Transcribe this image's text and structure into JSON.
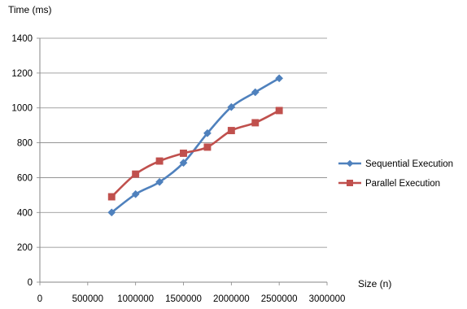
{
  "chart_data": {
    "type": "line",
    "xlabel": "Size (n)",
    "ylabel": "Time (ms)",
    "xlim": [
      0,
      3000000
    ],
    "ylim": [
      0,
      1400
    ],
    "x_ticks": [
      0,
      500000,
      1000000,
      1500000,
      2000000,
      2500000,
      3000000
    ],
    "y_ticks": [
      0,
      200,
      400,
      600,
      800,
      1000,
      1200,
      1400
    ],
    "grid": "horizontal",
    "legend_position": "right",
    "x": [
      750000,
      1000000,
      1250000,
      1500000,
      1750000,
      2000000,
      2250000,
      2500000
    ],
    "series": [
      {
        "name": "Sequential Execution",
        "color": "#4F81BD",
        "marker": "diamond",
        "values": [
          400,
          505,
          575,
          685,
          855,
          1005,
          1090,
          1170
        ]
      },
      {
        "name": "Parallel Execution",
        "color": "#C0504D",
        "marker": "square",
        "values": [
          490,
          620,
          695,
          740,
          775,
          870,
          915,
          985
        ]
      }
    ]
  }
}
